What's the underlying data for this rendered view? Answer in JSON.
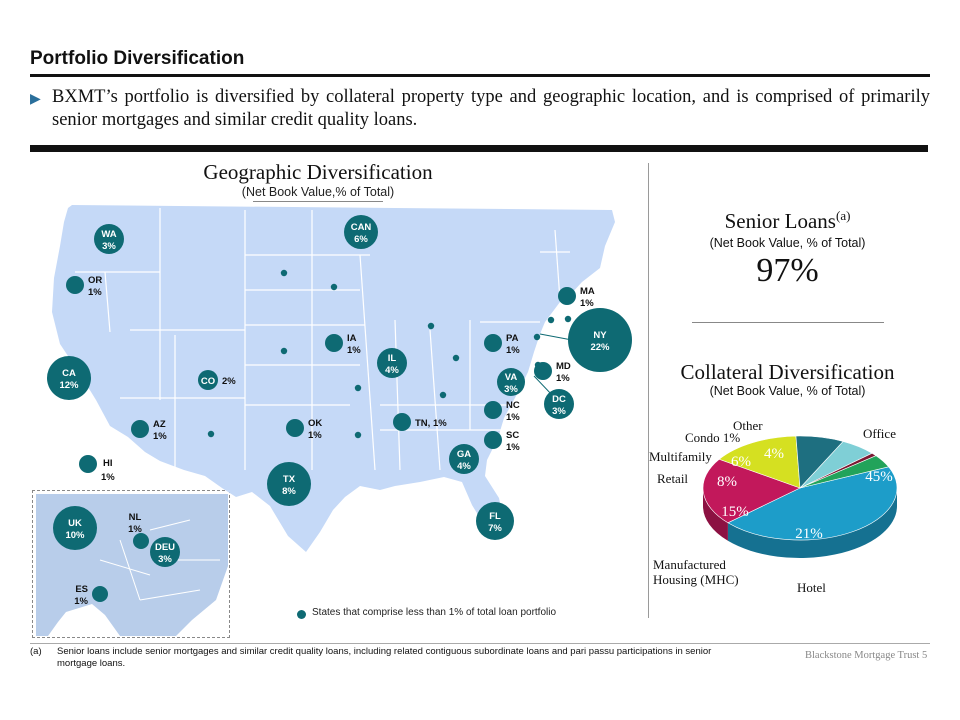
{
  "header": {
    "title": "Portfolio Diversification",
    "bullet": "BXMT’s portfolio is diversified by collateral property type and geographic location, and is comprised of primarily senior mortgages and similar credit quality loans."
  },
  "geographic": {
    "title": "Geographic Diversification",
    "subtitle": "(Net Book Value,% of Total)",
    "marker_color": "#0e6a73",
    "map_fill": "#c5d9f7",
    "markers": [
      {
        "code": "WA",
        "value": "3%"
      },
      {
        "code": "OR",
        "value": "1%"
      },
      {
        "code": "CA",
        "value": "12%"
      },
      {
        "code": "AZ",
        "value": "1%"
      },
      {
        "code": "HI",
        "value": "1%"
      },
      {
        "code": "CO",
        "value": "2%"
      },
      {
        "code": "TX",
        "value": "8%"
      },
      {
        "code": "OK",
        "value": "1%"
      },
      {
        "code": "IA",
        "value": "1%"
      },
      {
        "code": "IL",
        "value": "4%"
      },
      {
        "code": "CAN",
        "value": "6%"
      },
      {
        "code": "TN",
        "value": "1%"
      },
      {
        "code": "GA",
        "value": "4%"
      },
      {
        "code": "FL",
        "value": "7%"
      },
      {
        "code": "PA",
        "value": "1%"
      },
      {
        "code": "VA",
        "value": "3%"
      },
      {
        "code": "NC",
        "value": "1%"
      },
      {
        "code": "SC",
        "value": "1%"
      },
      {
        "code": "MD",
        "value": "1%"
      },
      {
        "code": "DC",
        "value": "3%"
      },
      {
        "code": "NY",
        "value": "22%"
      },
      {
        "code": "MA",
        "value": "1%"
      },
      {
        "code": "UK",
        "value": "10%"
      },
      {
        "code": "NL",
        "value": "1%"
      },
      {
        "code": "DEU",
        "value": "3%"
      },
      {
        "code": "ES",
        "value": "1%"
      }
    ],
    "legend": "States that comprise less than 1% of total loan portfolio"
  },
  "senior_loans": {
    "title": "Senior Loans",
    "footnote_ref": "(a)",
    "subtitle": "(Net Book Value, % of Total)",
    "value": "97%"
  },
  "collateral": {
    "title": "Collateral Diversification",
    "subtitle": "(Net Book Value, % of Total)"
  },
  "chart_data": {
    "type": "pie",
    "title": "Collateral Diversification",
    "subtitle": "(Net Book Value, % of Total)",
    "slices": [
      {
        "label": "Office",
        "value": 45,
        "display": "45%",
        "color": "#1d9dc9"
      },
      {
        "label": "Hotel",
        "value": 21,
        "display": "21%",
        "color": "#c2185b"
      },
      {
        "label": "Manufactured Housing (MHC)",
        "value": 15,
        "display": "15%",
        "color": "#d5e021"
      },
      {
        "label": "Retail",
        "value": 8,
        "display": "8%",
        "color": "#1e6f80"
      },
      {
        "label": "Multifamily",
        "value": 6,
        "display": "6%",
        "color": "#7fcfd6"
      },
      {
        "label": "Condo",
        "value": 1,
        "display": "1%",
        "color": "#7b1a33"
      },
      {
        "label": "Other",
        "value": 4,
        "display": "4%",
        "color": "#22a35a"
      }
    ],
    "category_labels": {
      "office": "Office",
      "other": "Other",
      "condo": "Condo 1%",
      "multifamily": "Multifamily",
      "retail": "Retail",
      "mhc_line1": "Manufactured",
      "mhc_line2": "Housing (MHC)",
      "hotel": "Hotel"
    }
  },
  "footer": {
    "marker": "(a)",
    "note": "Senior loans include senior mortgages and similar credit quality loans, including related contiguous subordinate loans and pari passu participations in senior mortgage loans.",
    "brand": "Blackstone Mortgage Trust",
    "page": "5"
  }
}
